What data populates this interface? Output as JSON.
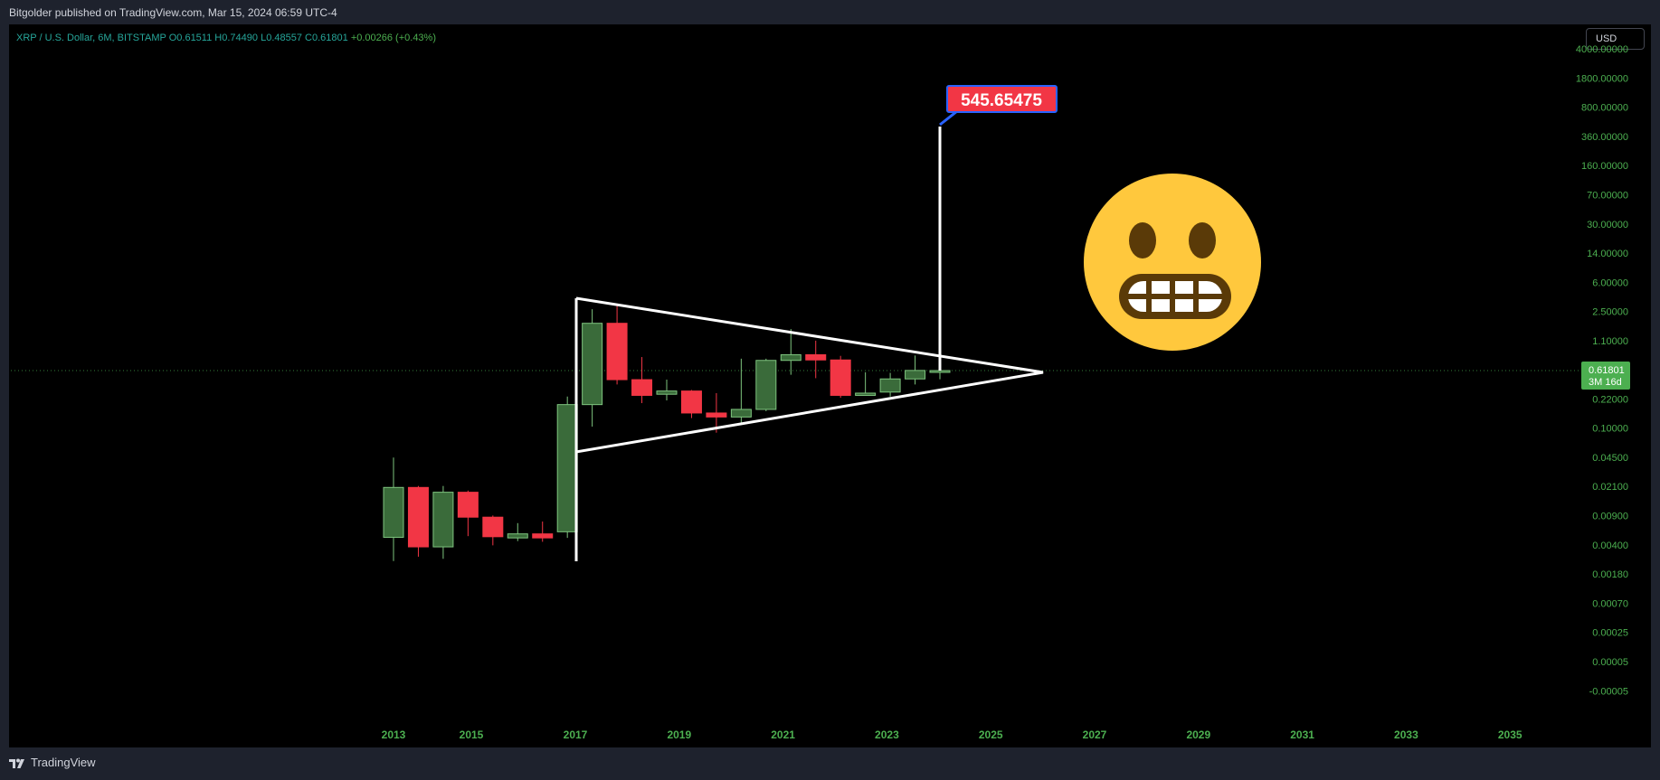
{
  "header": {
    "publisher_line": "Bitgolder published on TradingView.com, Mar 15, 2024 06:59 UTC-4"
  },
  "legend": {
    "symbol": "XRP / U.S. Dollar, 6M, BITSTAMP",
    "open": "O0.61511",
    "high": "H0.74490",
    "low": "L0.48557",
    "close": "C0.61801",
    "change": "+0.00266 (+0.43%)"
  },
  "toolbar": {
    "currency_label": "USD"
  },
  "footer": {
    "brand": "TradingView"
  },
  "annotations": {
    "target_label": "545.65475",
    "current_price": "0.61801",
    "countdown": "3M 16d",
    "emoji": "grimacing-face-icon"
  },
  "colors": {
    "up": "#3a6b3a",
    "up_border": "#7ec47e",
    "down": "#f23645",
    "axis_text": "#4caf50",
    "price_badge": "#4caf50",
    "label_bg": "#f23645",
    "label_border": "#2962ff",
    "emoji_face": "#ffc83d",
    "emoji_feature": "#5a3a08"
  },
  "chart_data": {
    "type": "candlestick",
    "symbol": "XRP / U.S. Dollar",
    "interval": "6M",
    "y_scale": "log",
    "y_tick_labels": [
      "4000.00000",
      "1800.00000",
      "800.00000",
      "360.00000",
      "160.00000",
      "70.00000",
      "30.00000",
      "14.00000",
      "6.00000",
      "2.50000",
      "1.10000",
      "0.22000",
      "0.10000",
      "0.04500",
      "0.02100",
      "0.00900",
      "0.00400",
      "0.00180",
      "0.00070",
      "0.00025",
      "0.00005",
      "-0.00005"
    ],
    "x_tick_labels": [
      "2013",
      "2015",
      "2017",
      "2019",
      "2021",
      "2023",
      "2025",
      "2027",
      "2029",
      "2031",
      "2033",
      "2035"
    ],
    "candles": [
      {
        "period": "2013 H1",
        "open": 0.006,
        "high": 0.055,
        "low": 0.0031,
        "close": 0.024
      },
      {
        "period": "2013 H2",
        "open": 0.024,
        "high": 0.025,
        "low": 0.0035,
        "close": 0.0046
      },
      {
        "period": "2014 H1",
        "open": 0.0046,
        "high": 0.025,
        "low": 0.0033,
        "close": 0.021
      },
      {
        "period": "2014 H2",
        "open": 0.021,
        "high": 0.022,
        "low": 0.0062,
        "close": 0.0105
      },
      {
        "period": "2015 H1",
        "open": 0.0105,
        "high": 0.011,
        "low": 0.0048,
        "close": 0.0061
      },
      {
        "period": "2015 H2",
        "open": 0.0059,
        "high": 0.0089,
        "low": 0.0054,
        "close": 0.0066
      },
      {
        "period": "2016 H1",
        "open": 0.0066,
        "high": 0.0093,
        "low": 0.0053,
        "close": 0.0059
      },
      {
        "period": "2016 H2",
        "open": 0.007,
        "high": 0.3,
        "low": 0.0059,
        "close": 0.24
      },
      {
        "period": "2017 H1",
        "open": 0.24,
        "high": 3.4,
        "low": 0.13,
        "close": 2.3
      },
      {
        "period": "2017 H2",
        "open": 2.3,
        "high": 3.84,
        "low": 0.42,
        "close": 0.48
      },
      {
        "period": "2018 H1",
        "open": 0.48,
        "high": 0.9,
        "low": 0.25,
        "close": 0.31
      },
      {
        "period": "2018 H2",
        "open": 0.32,
        "high": 0.48,
        "low": 0.27,
        "close": 0.35
      },
      {
        "period": "2019 H1",
        "open": 0.35,
        "high": 0.36,
        "low": 0.165,
        "close": 0.19
      },
      {
        "period": "2019 H2",
        "open": 0.19,
        "high": 0.33,
        "low": 0.11,
        "close": 0.17
      },
      {
        "period": "2020 H1",
        "open": 0.17,
        "high": 0.86,
        "low": 0.14,
        "close": 0.21
      },
      {
        "period": "2020 H2",
        "open": 0.21,
        "high": 0.86,
        "low": 0.2,
        "close": 0.82
      },
      {
        "period": "2021 H1",
        "open": 0.82,
        "high": 1.96,
        "low": 0.55,
        "close": 0.96
      },
      {
        "period": "2021 H2",
        "open": 0.96,
        "high": 1.42,
        "low": 0.5,
        "close": 0.83
      },
      {
        "period": "2022 H1",
        "open": 0.83,
        "high": 0.93,
        "low": 0.29,
        "close": 0.31
      },
      {
        "period": "2022 H2",
        "open": 0.31,
        "high": 0.59,
        "low": 0.31,
        "close": 0.33
      },
      {
        "period": "2023 H1",
        "open": 0.34,
        "high": 0.58,
        "low": 0.3,
        "close": 0.49
      },
      {
        "period": "2023 H2",
        "open": 0.49,
        "high": 0.94,
        "low": 0.42,
        "close": 0.62
      },
      {
        "period": "2024 H1",
        "open": 0.61511,
        "high": 0.7449,
        "low": 0.48557,
        "close": 0.61801
      }
    ],
    "current_price": 0.61801,
    "projection_target": 545.65475
  }
}
